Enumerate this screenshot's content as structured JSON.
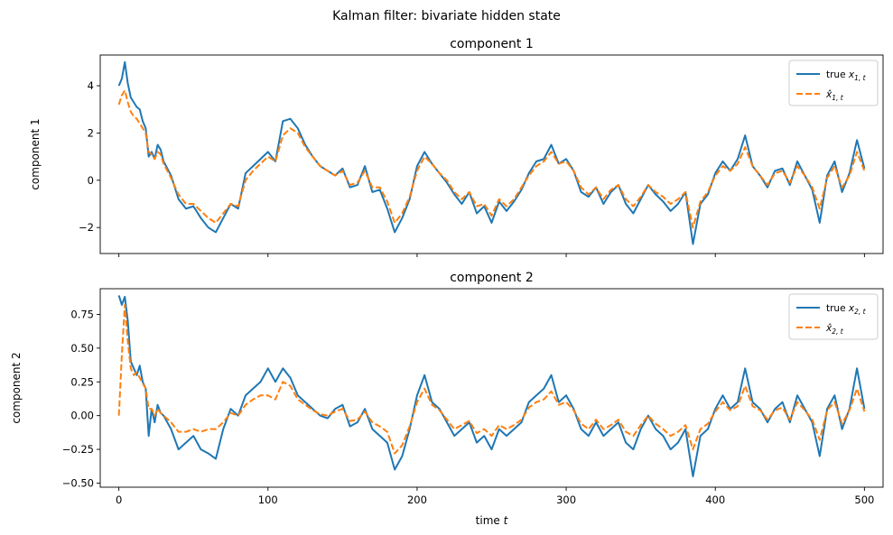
{
  "figure": {
    "suptitle": "Kalman filter: bivariate hidden state"
  },
  "colors": {
    "true_series": "#1f77b4",
    "estimate_series": "#ff7f0e"
  },
  "chart_data": [
    {
      "type": "line",
      "title": "component 1",
      "ylabel": "component 1",
      "xlabel": "",
      "xlim": [
        -12.5,
        512.5
      ],
      "ylim": [
        -3.1,
        5.3
      ],
      "xticks": [
        0,
        100,
        200,
        300,
        400,
        500
      ],
      "xtick_labels_visible": false,
      "yticks": [
        -2,
        0,
        2,
        4
      ],
      "ytick_labels": [
        "−2",
        "0",
        "2",
        "4"
      ],
      "legend": {
        "placement": "top-right",
        "entries": [
          {
            "base": "true x",
            "sub": "1, t",
            "style": "solid"
          },
          {
            "base": "x̂",
            "sub": "1, t",
            "style": "dashed"
          }
        ]
      },
      "series": [
        {
          "name": "true x_{1,t}",
          "style": "solid",
          "x": [
            0,
            2,
            4,
            6,
            8,
            10,
            12,
            14,
            16,
            18,
            20,
            22,
            24,
            26,
            28,
            30,
            35,
            40,
            45,
            50,
            55,
            60,
            65,
            70,
            75,
            80,
            85,
            90,
            95,
            100,
            105,
            110,
            115,
            120,
            125,
            130,
            135,
            140,
            145,
            150,
            155,
            160,
            165,
            170,
            175,
            180,
            185,
            190,
            195,
            200,
            205,
            210,
            215,
            220,
            225,
            230,
            235,
            240,
            245,
            250,
            255,
            260,
            265,
            270,
            275,
            280,
            285,
            290,
            295,
            300,
            305,
            310,
            315,
            320,
            325,
            330,
            335,
            340,
            345,
            350,
            355,
            360,
            365,
            370,
            375,
            380,
            385,
            390,
            395,
            400,
            405,
            410,
            415,
            420,
            425,
            430,
            435,
            440,
            445,
            450,
            455,
            460,
            465,
            470,
            475,
            480,
            485,
            490,
            495,
            500
          ],
          "values": [
            4.0,
            4.3,
            5.0,
            4.1,
            3.5,
            3.3,
            3.1,
            3.0,
            2.5,
            2.2,
            1.0,
            1.2,
            0.9,
            1.5,
            1.3,
            0.8,
            0.2,
            -0.8,
            -1.2,
            -1.1,
            -1.6,
            -2.0,
            -2.2,
            -1.6,
            -1.0,
            -1.2,
            0.3,
            0.6,
            0.9,
            1.2,
            0.8,
            2.5,
            2.6,
            2.2,
            1.5,
            1.0,
            0.6,
            0.4,
            0.2,
            0.5,
            -0.3,
            -0.2,
            0.6,
            -0.5,
            -0.4,
            -1.2,
            -2.2,
            -1.6,
            -0.8,
            0.6,
            1.2,
            0.7,
            0.3,
            -0.1,
            -0.6,
            -1.0,
            -0.5,
            -1.4,
            -1.1,
            -1.8,
            -0.9,
            -1.3,
            -0.9,
            -0.4,
            0.3,
            0.8,
            0.9,
            1.5,
            0.7,
            0.9,
            0.4,
            -0.5,
            -0.7,
            -0.3,
            -1.0,
            -0.5,
            -0.2,
            -1.0,
            -1.4,
            -0.8,
            -0.2,
            -0.6,
            -0.9,
            -1.3,
            -1.0,
            -0.5,
            -2.7,
            -1.0,
            -0.6,
            0.3,
            0.8,
            0.4,
            0.9,
            1.9,
            0.6,
            0.2,
            -0.3,
            0.4,
            0.5,
            -0.2,
            0.8,
            0.2,
            -0.4,
            -1.8,
            0.2,
            0.8,
            -0.5,
            0.3,
            1.7,
            0.5
          ]
        },
        {
          "name": "x̂_{1,t}",
          "style": "dashed",
          "x": [
            0,
            2,
            4,
            6,
            8,
            10,
            12,
            14,
            16,
            18,
            20,
            22,
            24,
            26,
            28,
            30,
            35,
            40,
            45,
            50,
            55,
            60,
            65,
            70,
            75,
            80,
            85,
            90,
            95,
            100,
            105,
            110,
            115,
            120,
            125,
            130,
            135,
            140,
            145,
            150,
            155,
            160,
            165,
            170,
            175,
            180,
            185,
            190,
            195,
            200,
            205,
            210,
            215,
            220,
            225,
            230,
            235,
            240,
            245,
            250,
            255,
            260,
            265,
            270,
            275,
            280,
            285,
            290,
            295,
            300,
            305,
            310,
            315,
            320,
            325,
            330,
            335,
            340,
            345,
            350,
            355,
            360,
            365,
            370,
            375,
            380,
            385,
            390,
            395,
            400,
            405,
            410,
            415,
            420,
            425,
            430,
            435,
            440,
            445,
            450,
            455,
            460,
            465,
            470,
            475,
            480,
            485,
            490,
            495,
            500
          ],
          "values": [
            3.2,
            3.6,
            3.8,
            3.3,
            2.9,
            2.7,
            2.6,
            2.4,
            2.2,
            2.0,
            1.2,
            1.1,
            0.9,
            1.2,
            1.1,
            0.7,
            0.1,
            -0.6,
            -1.0,
            -1.0,
            -1.3,
            -1.6,
            -1.8,
            -1.4,
            -1.0,
            -1.1,
            0.0,
            0.4,
            0.7,
            1.0,
            0.8,
            1.9,
            2.2,
            2.0,
            1.4,
            1.0,
            0.6,
            0.4,
            0.2,
            0.4,
            -0.2,
            -0.1,
            0.4,
            -0.3,
            -0.3,
            -0.9,
            -1.8,
            -1.4,
            -0.7,
            0.4,
            1.0,
            0.7,
            0.3,
            0.0,
            -0.5,
            -0.8,
            -0.5,
            -1.1,
            -1.0,
            -1.5,
            -0.8,
            -1.1,
            -0.8,
            -0.3,
            0.2,
            0.6,
            0.8,
            1.2,
            0.7,
            0.8,
            0.4,
            -0.3,
            -0.6,
            -0.3,
            -0.8,
            -0.4,
            -0.2,
            -0.8,
            -1.1,
            -0.7,
            -0.2,
            -0.5,
            -0.7,
            -1.0,
            -0.8,
            -0.5,
            -2.0,
            -0.9,
            -0.5,
            0.2,
            0.6,
            0.4,
            0.7,
            1.4,
            0.6,
            0.2,
            -0.2,
            0.3,
            0.4,
            -0.1,
            0.6,
            0.2,
            -0.3,
            -1.2,
            0.1,
            0.6,
            -0.3,
            0.2,
            1.2,
            0.4
          ]
        }
      ]
    },
    {
      "type": "line",
      "title": "component 2",
      "ylabel": "component 2",
      "xlabel": "time t",
      "xlim": [
        -12.5,
        512.5
      ],
      "ylim": [
        -0.53,
        0.94
      ],
      "xticks": [
        0,
        100,
        200,
        300,
        400,
        500
      ],
      "xtick_labels": [
        "0",
        "100",
        "200",
        "300",
        "400",
        "500"
      ],
      "yticks": [
        -0.5,
        -0.25,
        0.0,
        0.25,
        0.5,
        0.75
      ],
      "ytick_labels": [
        "−0.50",
        "−0.25",
        "0.00",
        "0.25",
        "0.50",
        "0.75"
      ],
      "legend": {
        "placement": "top-right",
        "entries": [
          {
            "base": "true x",
            "sub": "2, t",
            "style": "solid"
          },
          {
            "base": "x̂",
            "sub": "2, t",
            "style": "dashed"
          }
        ]
      },
      "series": [
        {
          "name": "true x_{2,t}",
          "style": "solid",
          "x": [
            0,
            2,
            4,
            6,
            8,
            10,
            12,
            14,
            16,
            18,
            20,
            22,
            24,
            26,
            28,
            30,
            35,
            40,
            45,
            50,
            55,
            60,
            65,
            70,
            75,
            80,
            85,
            90,
            95,
            100,
            105,
            110,
            115,
            120,
            125,
            130,
            135,
            140,
            145,
            150,
            155,
            160,
            165,
            170,
            175,
            180,
            185,
            190,
            195,
            200,
            205,
            210,
            215,
            220,
            225,
            230,
            235,
            240,
            245,
            250,
            255,
            260,
            265,
            270,
            275,
            280,
            285,
            290,
            295,
            300,
            305,
            310,
            315,
            320,
            325,
            330,
            335,
            340,
            345,
            350,
            355,
            360,
            365,
            370,
            375,
            380,
            385,
            390,
            395,
            400,
            405,
            410,
            415,
            420,
            425,
            430,
            435,
            440,
            445,
            450,
            455,
            460,
            465,
            470,
            475,
            480,
            485,
            490,
            495,
            500
          ],
          "values": [
            0.89,
            0.82,
            0.88,
            0.7,
            0.4,
            0.35,
            0.3,
            0.37,
            0.25,
            0.2,
            -0.15,
            0.05,
            -0.05,
            0.08,
            0.02,
            0.0,
            -0.1,
            -0.25,
            -0.2,
            -0.15,
            -0.25,
            -0.28,
            -0.32,
            -0.1,
            0.05,
            0.0,
            0.15,
            0.2,
            0.25,
            0.35,
            0.25,
            0.35,
            0.28,
            0.15,
            0.1,
            0.05,
            0.0,
            -0.02,
            0.05,
            0.08,
            -0.08,
            -0.05,
            0.05,
            -0.1,
            -0.15,
            -0.2,
            -0.4,
            -0.3,
            -0.1,
            0.15,
            0.3,
            0.1,
            0.05,
            -0.05,
            -0.15,
            -0.1,
            -0.05,
            -0.2,
            -0.15,
            -0.25,
            -0.1,
            -0.15,
            -0.1,
            -0.05,
            0.1,
            0.15,
            0.2,
            0.3,
            0.1,
            0.15,
            0.05,
            -0.1,
            -0.15,
            -0.05,
            -0.15,
            -0.1,
            -0.05,
            -0.2,
            -0.25,
            -0.1,
            0.0,
            -0.1,
            -0.15,
            -0.25,
            -0.2,
            -0.1,
            -0.45,
            -0.15,
            -0.1,
            0.05,
            0.15,
            0.05,
            0.1,
            0.35,
            0.1,
            0.05,
            -0.05,
            0.05,
            0.1,
            -0.05,
            0.15,
            0.05,
            -0.05,
            -0.3,
            0.05,
            0.15,
            -0.1,
            0.05,
            0.35,
            0.05
          ]
        },
        {
          "name": "x̂_{2,t}",
          "style": "dashed",
          "x": [
            0,
            2,
            4,
            6,
            8,
            10,
            12,
            14,
            16,
            18,
            20,
            22,
            24,
            26,
            28,
            30,
            35,
            40,
            45,
            50,
            55,
            60,
            65,
            70,
            75,
            80,
            85,
            90,
            95,
            100,
            105,
            110,
            115,
            120,
            125,
            130,
            135,
            140,
            145,
            150,
            155,
            160,
            165,
            170,
            175,
            180,
            185,
            190,
            195,
            200,
            205,
            210,
            215,
            220,
            225,
            230,
            235,
            240,
            245,
            250,
            255,
            260,
            265,
            270,
            275,
            280,
            285,
            290,
            295,
            300,
            305,
            310,
            315,
            320,
            325,
            330,
            335,
            340,
            345,
            350,
            355,
            360,
            365,
            370,
            375,
            380,
            385,
            390,
            395,
            400,
            405,
            410,
            415,
            420,
            425,
            430,
            435,
            440,
            445,
            450,
            455,
            460,
            465,
            470,
            475,
            480,
            485,
            490,
            495,
            500
          ],
          "values": [
            0.0,
            0.45,
            0.82,
            0.55,
            0.35,
            0.3,
            0.32,
            0.28,
            0.24,
            0.2,
            0.05,
            0.05,
            0.0,
            0.05,
            0.02,
            0.0,
            -0.05,
            -0.12,
            -0.12,
            -0.1,
            -0.12,
            -0.1,
            -0.1,
            -0.05,
            0.02,
            0.0,
            0.08,
            0.12,
            0.15,
            0.15,
            0.12,
            0.25,
            0.22,
            0.12,
            0.08,
            0.04,
            0.01,
            0.0,
            0.03,
            0.05,
            -0.04,
            -0.03,
            0.03,
            -0.05,
            -0.08,
            -0.12,
            -0.28,
            -0.22,
            -0.08,
            0.1,
            0.2,
            0.08,
            0.04,
            -0.03,
            -0.1,
            -0.07,
            -0.04,
            -0.13,
            -0.1,
            -0.15,
            -0.07,
            -0.1,
            -0.07,
            -0.03,
            0.06,
            0.1,
            0.12,
            0.18,
            0.08,
            0.1,
            0.04,
            -0.06,
            -0.1,
            -0.03,
            -0.1,
            -0.07,
            -0.03,
            -0.12,
            -0.15,
            -0.07,
            0.0,
            -0.06,
            -0.1,
            -0.15,
            -0.12,
            -0.07,
            -0.25,
            -0.1,
            -0.06,
            0.03,
            0.1,
            0.04,
            0.07,
            0.22,
            0.07,
            0.04,
            -0.03,
            0.04,
            0.06,
            -0.03,
            0.1,
            0.04,
            -0.03,
            -0.18,
            0.04,
            0.1,
            -0.06,
            0.04,
            0.2,
            0.03
          ]
        }
      ]
    }
  ]
}
